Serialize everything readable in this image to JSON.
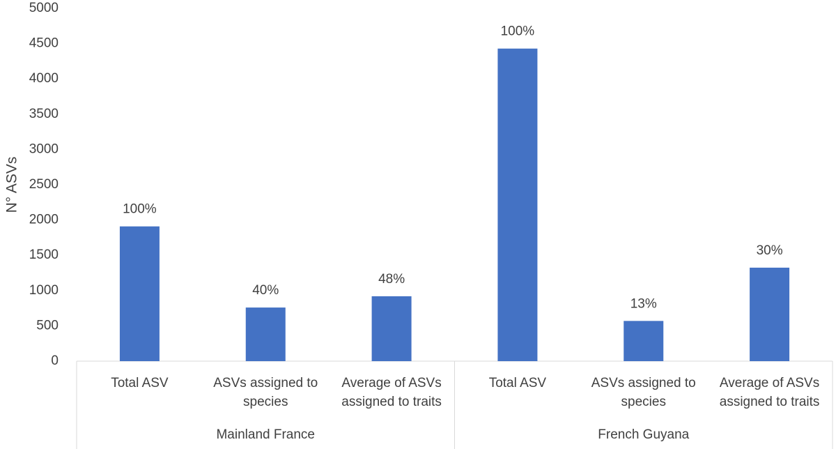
{
  "chart_data": {
    "type": "bar",
    "y_label": "N° ASVs",
    "color": "#4472c4",
    "ylim": [
      0,
      5000
    ],
    "yticks": [
      0,
      500,
      1000,
      1500,
      2000,
      2500,
      3000,
      3500,
      4000,
      4500,
      5000
    ],
    "grid": false,
    "groups": [
      {
        "name": "Mainland France",
        "categories": [
          "Total ASV",
          "ASVs assigned to species",
          "Average of ASVs assigned to traits"
        ],
        "values": [
          1910,
          760,
          920
        ],
        "annotations": [
          "100%",
          "40%",
          "48%"
        ]
      },
      {
        "name": "French Guyana",
        "categories": [
          "Total ASV",
          "ASVs assigned to species",
          "Average of ASVs assigned to traits"
        ],
        "values": [
          4430,
          570,
          1325
        ],
        "annotations": [
          "100%",
          "13%",
          "30%"
        ]
      }
    ]
  }
}
